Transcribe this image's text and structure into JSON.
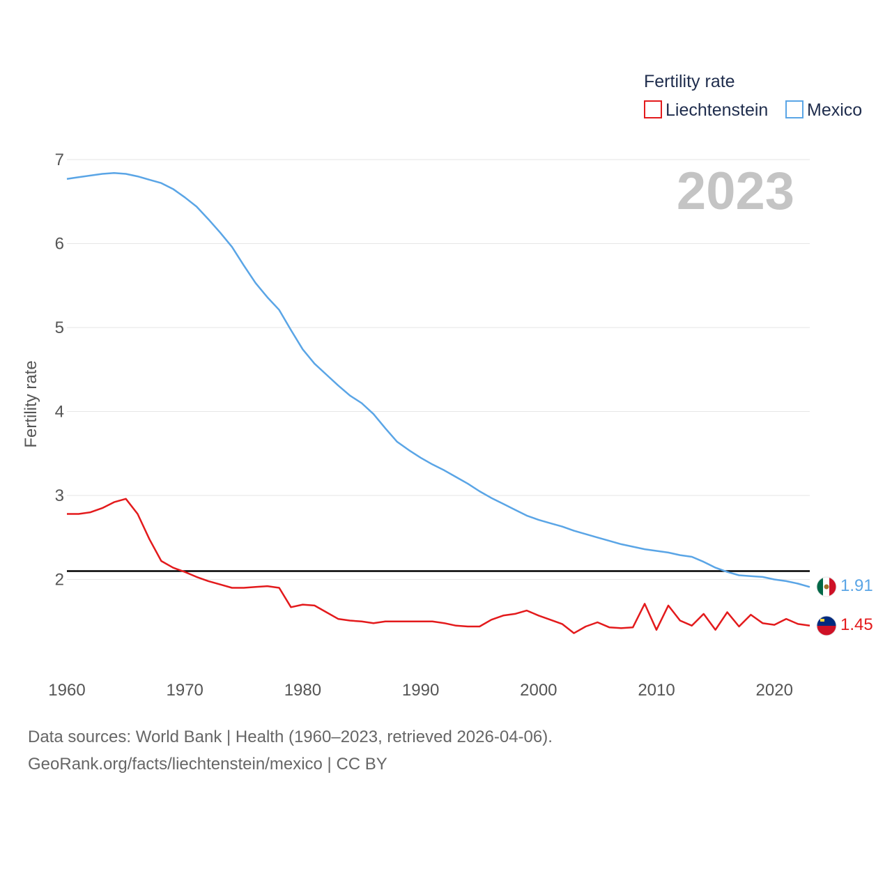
{
  "chart_data": {
    "type": "line",
    "legend_title": "Fertility rate",
    "ylabel": "Fertility rate",
    "current_year": "2023",
    "x": [
      1960,
      1961,
      1962,
      1963,
      1964,
      1965,
      1966,
      1967,
      1968,
      1969,
      1970,
      1971,
      1972,
      1973,
      1974,
      1975,
      1976,
      1977,
      1978,
      1979,
      1980,
      1981,
      1982,
      1983,
      1984,
      1985,
      1986,
      1987,
      1988,
      1989,
      1990,
      1991,
      1992,
      1993,
      1994,
      1995,
      1996,
      1997,
      1998,
      1999,
      2000,
      2001,
      2002,
      2003,
      2004,
      2005,
      2006,
      2007,
      2008,
      2009,
      2010,
      2011,
      2012,
      2013,
      2014,
      2015,
      2016,
      2017,
      2018,
      2019,
      2020,
      2021,
      2022,
      2023
    ],
    "xlim": [
      1960,
      2023
    ],
    "ylim": [
      1.0,
      7.0
    ],
    "xticks": [
      "1960",
      "1970",
      "1980",
      "1990",
      "2000",
      "2010",
      "2020"
    ],
    "yticks": [
      "2",
      "3",
      "4",
      "5",
      "6",
      "7"
    ],
    "reference_line": {
      "value": 2.1,
      "color": "#000000"
    },
    "series": [
      {
        "name": "Liechtenstein",
        "color": "#e31a1c",
        "end_label": "1.45",
        "flag": "liechtenstein-flag",
        "values": [
          2.78,
          2.78,
          2.8,
          2.85,
          2.92,
          2.96,
          2.78,
          2.48,
          2.22,
          2.14,
          2.09,
          2.03,
          1.98,
          1.94,
          1.9,
          1.9,
          1.91,
          1.92,
          1.9,
          1.67,
          1.7,
          1.69,
          1.61,
          1.53,
          1.51,
          1.5,
          1.48,
          1.5,
          1.5,
          1.5,
          1.5,
          1.5,
          1.48,
          1.45,
          1.44,
          1.44,
          1.52,
          1.57,
          1.59,
          1.63,
          1.57,
          1.52,
          1.47,
          1.36,
          1.44,
          1.49,
          1.43,
          1.42,
          1.43,
          1.71,
          1.4,
          1.69,
          1.51,
          1.45,
          1.59,
          1.4,
          1.61,
          1.44,
          1.58,
          1.48,
          1.46,
          1.53,
          1.47,
          1.45
        ]
      },
      {
        "name": "Mexico",
        "color": "#5aa5e6",
        "end_label": "1.91",
        "flag": "mexico-flag",
        "values": [
          6.77,
          6.79,
          6.81,
          6.83,
          6.84,
          6.83,
          6.8,
          6.76,
          6.72,
          6.65,
          6.55,
          6.44,
          6.29,
          6.13,
          5.96,
          5.74,
          5.53,
          5.36,
          5.21,
          4.97,
          4.74,
          4.57,
          4.44,
          4.31,
          4.19,
          4.1,
          3.97,
          3.8,
          3.64,
          3.54,
          3.45,
          3.37,
          3.3,
          3.22,
          3.14,
          3.05,
          2.97,
          2.9,
          2.83,
          2.76,
          2.71,
          2.67,
          2.63,
          2.58,
          2.54,
          2.5,
          2.46,
          2.42,
          2.39,
          2.36,
          2.34,
          2.32,
          2.29,
          2.27,
          2.21,
          2.14,
          2.09,
          2.05,
          2.04,
          2.03,
          2.0,
          1.98,
          1.95,
          1.91
        ]
      }
    ]
  },
  "footer": {
    "sources": "Data sources: World Bank | Health (1960–2023, retrieved 2026-04-06).",
    "credit": "GeoRank.org/facts/liechtenstein/mexico | CC BY"
  }
}
